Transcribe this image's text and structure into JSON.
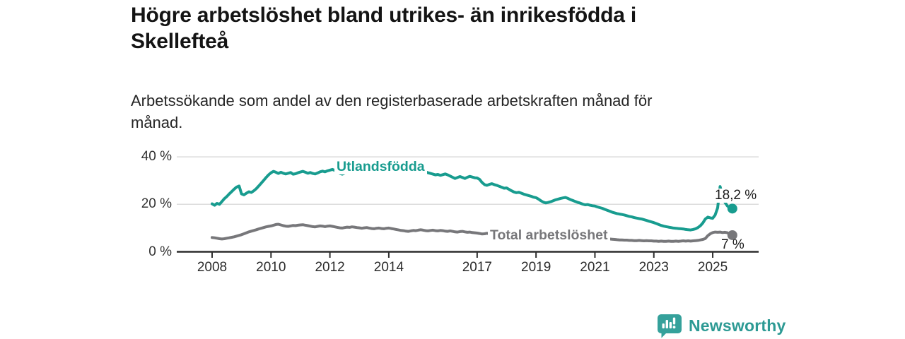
{
  "header": {
    "title_line1": "Högre arbetslöshet bland utrikes- än inrikesfödda i",
    "title_line2": "Skellefteå",
    "subtitle_line1": "Arbetssökande som andel av den registerbaserade arbetskraften månad för",
    "subtitle_line2": "månad."
  },
  "footer": {
    "brand": "Newsworthy"
  },
  "colors": {
    "foreign_line": "#189C8F",
    "total_line": "#77777A",
    "grid": "#DCDCDC",
    "axis": "#2E2E2E",
    "text": "#333333",
    "brand": "#2D9A94"
  },
  "chart_data": {
    "type": "line",
    "title": "Högre arbetslöshet bland utrikes- än inrikesfödda i Skellefteå",
    "subtitle": "Arbetssökande som andel av den registerbaserade arbetskraften månad för månad.",
    "unit": "%",
    "grid": "horizontal",
    "legend_position": "inline-labels",
    "ylim": [
      0,
      42
    ],
    "y_ticks": [
      {
        "value": 0,
        "label": "0 %"
      },
      {
        "value": 20,
        "label": "20 %"
      },
      {
        "value": 40,
        "label": "40 %"
      }
    ],
    "x_ticks": [
      {
        "year": 2008,
        "label": "2008"
      },
      {
        "year": 2010,
        "label": "2010"
      },
      {
        "year": 2012,
        "label": "2012"
      },
      {
        "year": 2014,
        "label": "2014"
      },
      {
        "year": 2017,
        "label": "2017"
      },
      {
        "year": 2019,
        "label": "2019"
      },
      {
        "year": 2021,
        "label": "2021"
      },
      {
        "year": 2023,
        "label": "2023"
      },
      {
        "year": 2025,
        "label": "2025"
      }
    ],
    "series": [
      {
        "name": "Utlandsfödda",
        "color": "#189C8F",
        "end_label": "18,2 %",
        "end_value": 18.2,
        "start_year": 2008,
        "values_monthly": [
          20.2,
          19.6,
          20.4,
          20.0,
          21.2,
          22.4,
          23.3,
          24.4,
          25.4,
          26.4,
          27.3,
          27.7,
          24.4,
          24.0,
          24.7,
          25.3,
          25.0,
          25.7,
          26.6,
          27.7,
          28.9,
          30.1,
          31.3,
          32.4,
          33.3,
          33.9,
          33.5,
          33.0,
          33.5,
          33.1,
          32.8,
          33.1,
          33.4,
          32.7,
          32.9,
          33.3,
          33.6,
          33.9,
          33.5,
          33.1,
          33.4,
          33.0,
          32.8,
          33.2,
          33.7,
          34.0,
          33.7,
          34.1,
          34.4,
          34.7,
          34.3,
          33.7,
          33.0,
          32.7,
          33.1,
          33.5,
          33.3,
          33.6,
          33.4,
          33.7,
          33.5,
          33.9,
          34.3,
          34.6,
          34.2,
          34.0,
          34.4,
          34.7,
          35.0,
          34.8,
          35.1,
          35.3,
          35.5,
          35.8,
          35.3,
          35.6,
          35.9,
          35.5,
          35.2,
          35.6,
          35.8,
          35.4,
          35.1,
          35.3,
          35.0,
          34.6,
          34.1,
          33.7,
          33.3,
          33.0,
          32.7,
          32.4,
          32.6,
          32.2,
          32.5,
          32.8,
          32.4,
          31.9,
          31.4,
          30.9,
          31.3,
          31.7,
          31.3,
          30.9,
          31.4,
          31.8,
          31.5,
          31.2,
          31.1,
          30.5,
          29.2,
          28.3,
          28.0,
          28.4,
          28.7,
          28.3,
          28.0,
          27.6,
          27.2,
          26.8,
          26.9,
          26.3,
          25.7,
          25.2,
          24.9,
          25.1,
          24.7,
          24.3,
          24.0,
          23.7,
          23.4,
          23.0,
          22.8,
          22.2,
          21.5,
          20.9,
          20.6,
          20.8,
          21.1,
          21.5,
          21.9,
          22.2,
          22.5,
          22.7,
          22.9,
          22.5,
          22.0,
          21.6,
          21.2,
          20.8,
          20.5,
          20.1,
          19.8,
          19.9,
          19.6,
          19.4,
          19.3,
          18.9,
          18.6,
          18.3,
          17.9,
          17.5,
          17.1,
          16.7,
          16.4,
          16.1,
          15.9,
          15.7,
          15.5,
          15.2,
          14.9,
          14.7,
          14.4,
          14.2,
          14.0,
          13.8,
          13.5,
          13.2,
          12.9,
          12.6,
          12.3,
          11.9,
          11.5,
          11.1,
          10.8,
          10.6,
          10.4,
          10.2,
          10.0,
          9.9,
          9.8,
          9.7,
          9.6,
          9.4,
          9.3,
          9.2,
          9.4,
          9.7,
          10.2,
          11.0,
          12.2,
          13.8,
          14.6,
          14.3,
          14.1,
          15.5,
          18.5,
          27.5,
          23.5,
          20.8,
          19.3,
          18.5,
          18.2
        ]
      },
      {
        "name": "Total arbetslöshet",
        "color": "#77777A",
        "end_label": "7 %",
        "end_value": 7.0,
        "start_year": 2008,
        "values_monthly": [
          6.0,
          5.9,
          5.7,
          5.5,
          5.4,
          5.5,
          5.7,
          5.9,
          6.1,
          6.3,
          6.6,
          6.9,
          7.2,
          7.6,
          8.0,
          8.4,
          8.7,
          9.0,
          9.3,
          9.6,
          9.9,
          10.2,
          10.5,
          10.7,
          10.9,
          11.2,
          11.5,
          11.6,
          11.3,
          11.0,
          10.8,
          10.7,
          10.9,
          11.1,
          11.0,
          11.2,
          11.3,
          11.4,
          11.2,
          11.0,
          10.8,
          10.6,
          10.5,
          10.7,
          10.9,
          10.8,
          10.6,
          10.8,
          10.9,
          10.7,
          10.5,
          10.3,
          10.1,
          10.0,
          10.2,
          10.4,
          10.3,
          10.5,
          10.4,
          10.2,
          10.1,
          9.9,
          10.1,
          10.2,
          10.0,
          9.8,
          9.7,
          9.9,
          10.0,
          9.8,
          9.7,
          9.9,
          10.0,
          9.8,
          9.6,
          9.4,
          9.2,
          9.0,
          8.9,
          8.7,
          8.6,
          8.8,
          9.0,
          8.9,
          9.1,
          9.3,
          9.1,
          8.9,
          8.8,
          9.0,
          9.1,
          8.9,
          8.8,
          9.0,
          8.9,
          8.7,
          8.6,
          8.8,
          8.6,
          8.4,
          8.3,
          8.5,
          8.6,
          8.4,
          8.2,
          8.3,
          8.1,
          8.0,
          7.9,
          7.7,
          7.5,
          7.6,
          7.8,
          7.6,
          7.4,
          7.3,
          7.2,
          7.1,
          7.0,
          7.1,
          7.0,
          6.9,
          6.7,
          6.6,
          6.5,
          6.6,
          6.4,
          6.3,
          6.2,
          6.3,
          6.2,
          6.1,
          6.2,
          6.1,
          6.0,
          6.1,
          6.2,
          6.1,
          6.3,
          6.4,
          6.3,
          6.5,
          6.6,
          6.7,
          6.8,
          6.9,
          7.0,
          6.9,
          6.8,
          6.7,
          6.6,
          6.5,
          6.4,
          6.3,
          6.2,
          6.1,
          6.0,
          5.9,
          5.8,
          5.7,
          5.6,
          5.5,
          5.4,
          5.3,
          5.2,
          5.1,
          5.0,
          5.0,
          4.9,
          4.9,
          4.8,
          4.8,
          4.7,
          4.7,
          4.8,
          4.7,
          4.6,
          4.7,
          4.6,
          4.6,
          4.5,
          4.5,
          4.4,
          4.5,
          4.4,
          4.4,
          4.5,
          4.4,
          4.4,
          4.5,
          4.4,
          4.5,
          4.6,
          4.5,
          4.6,
          4.5,
          4.6,
          4.7,
          4.8,
          5.0,
          5.2,
          5.6,
          6.8,
          7.6,
          8.1,
          8.3,
          8.2,
          8.3,
          8.1,
          8.2,
          8.0,
          7.4,
          7.0
        ]
      }
    ]
  }
}
